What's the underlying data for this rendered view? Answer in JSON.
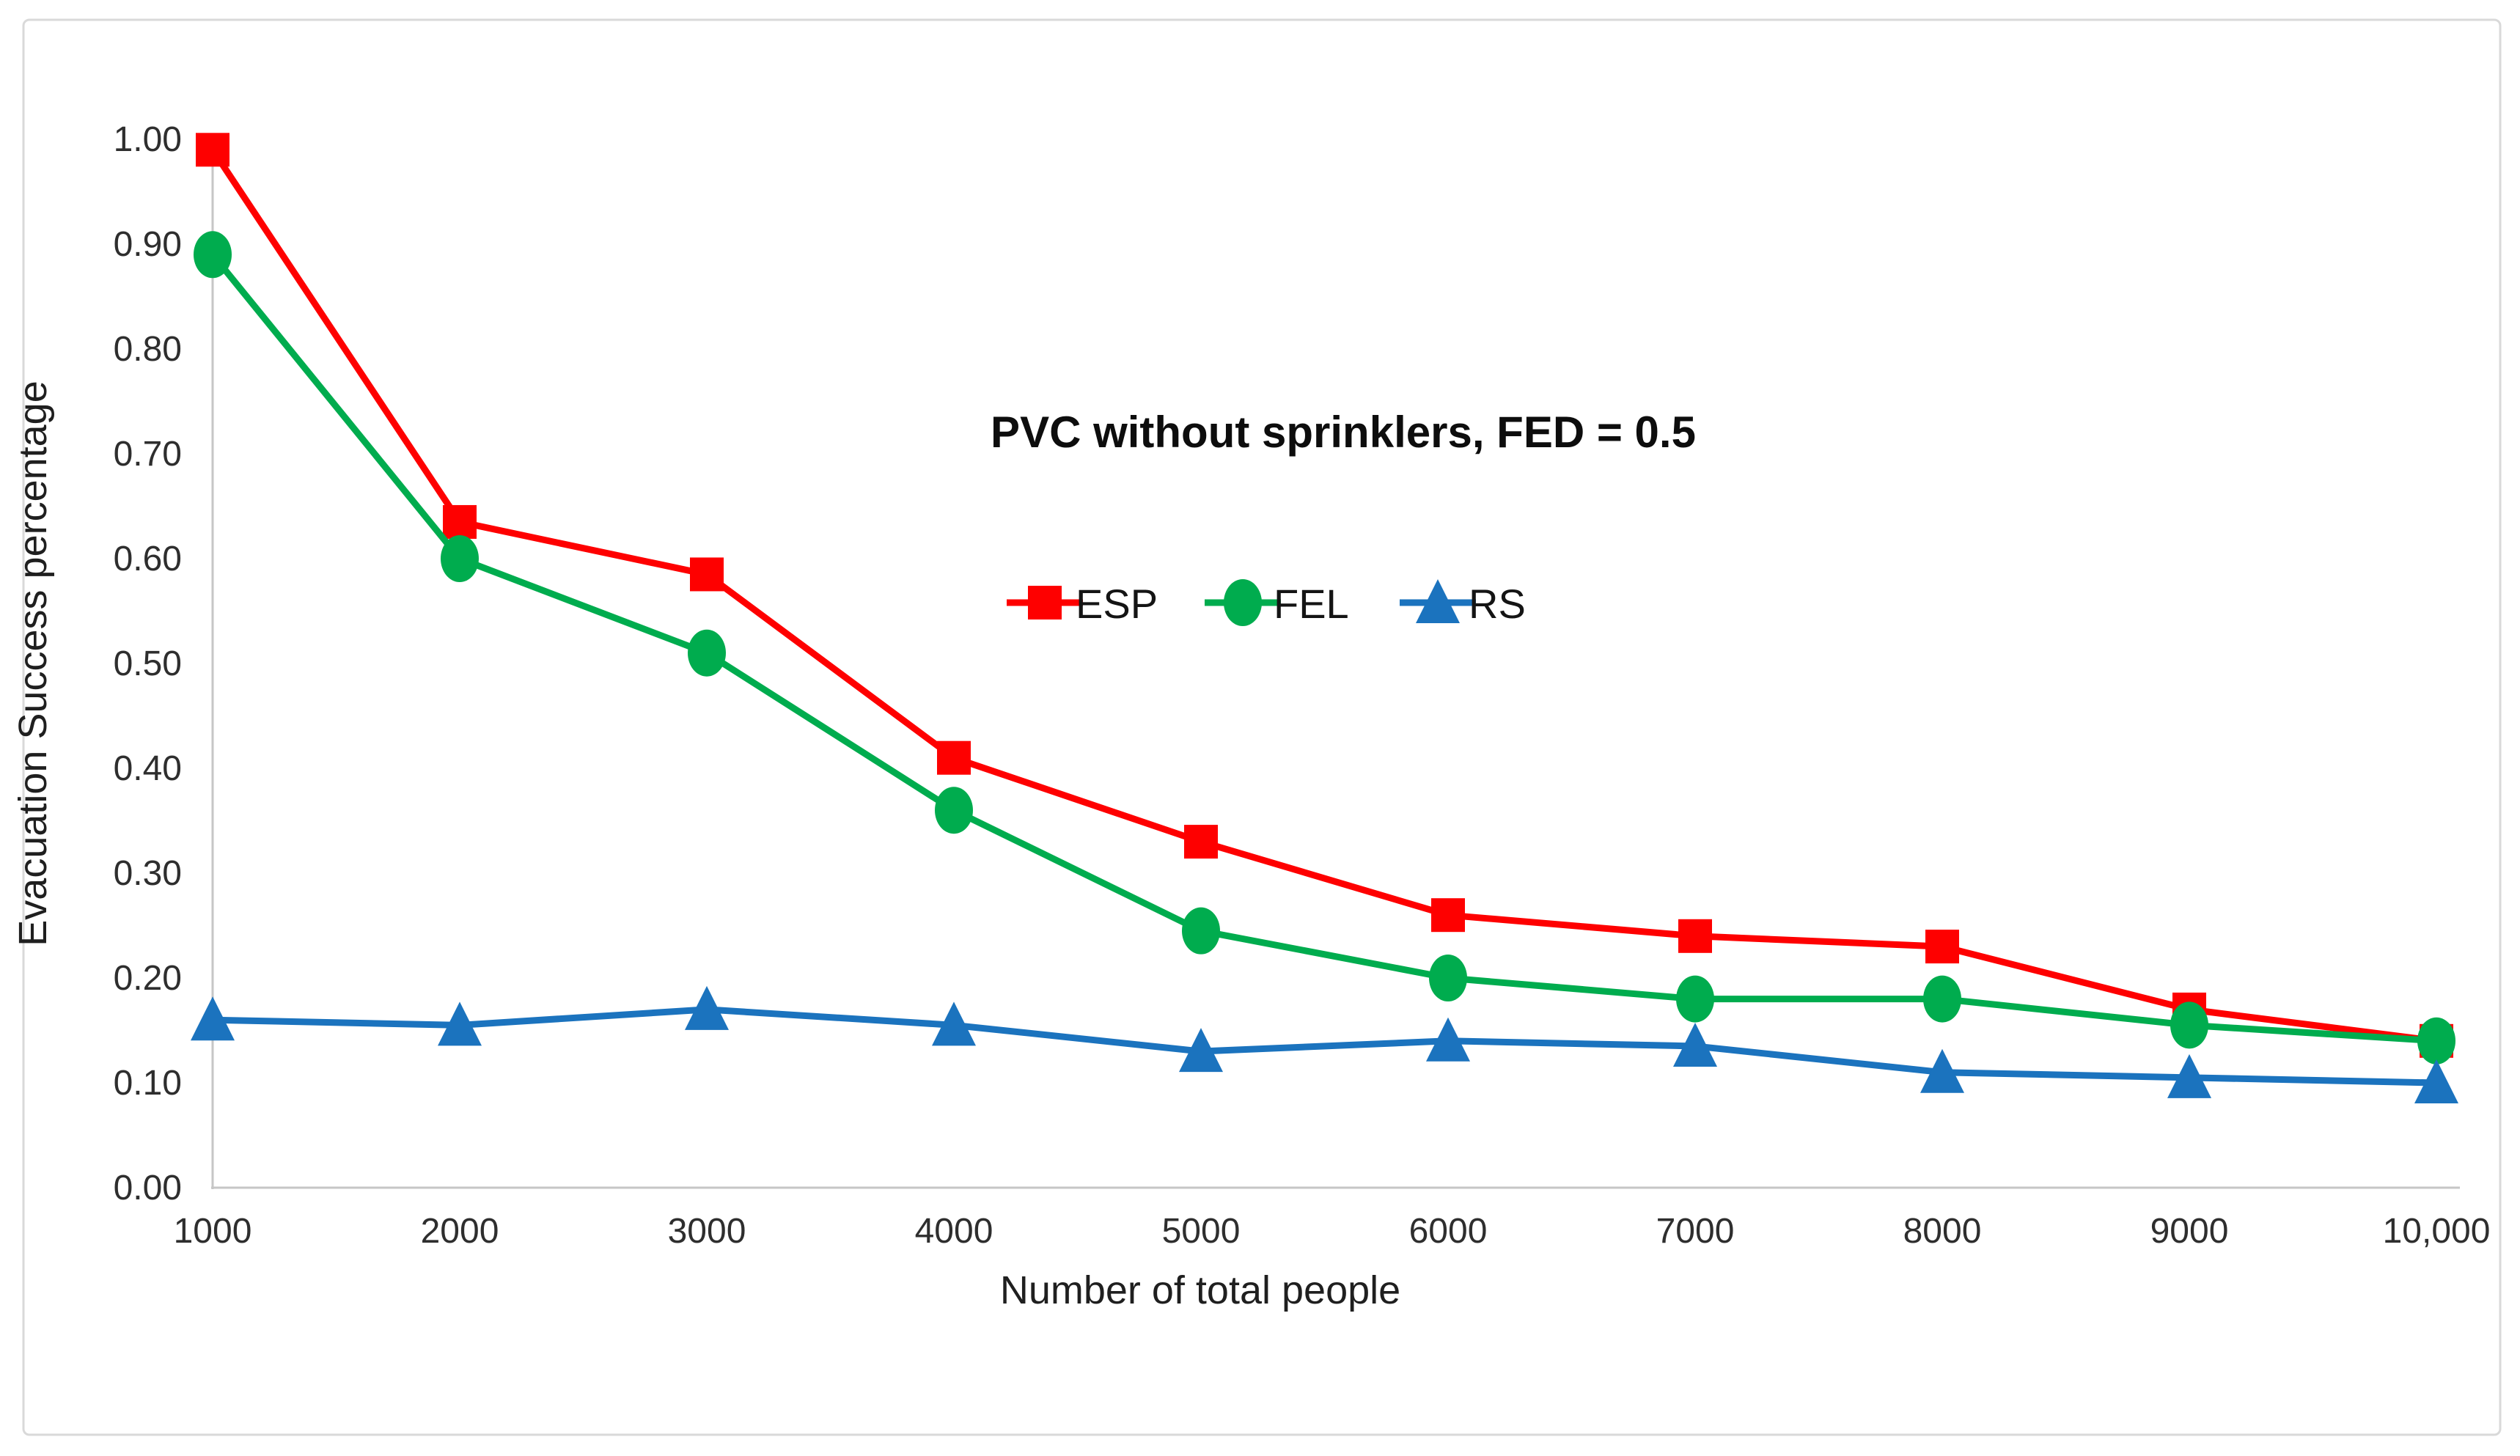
{
  "figure": {
    "background_color": "#FFFFFF",
    "border_color": "#D9D9D9",
    "axis_line_color": "#C6C6C6",
    "text_color": "#2E2E2E"
  },
  "chart_data": {
    "type": "line",
    "title": "PVC without sprinklers, FED = 0.5",
    "xlabel": "Number of total people",
    "ylabel": "Evacuation Success percentage",
    "x": [
      1000,
      2000,
      3000,
      4000,
      5000,
      6000,
      7000,
      8000,
      9000,
      10000
    ],
    "x_tick_labels": [
      "1000",
      "2000",
      "3000",
      "4000",
      "5000",
      "6000",
      "7000",
      "8000",
      "9000",
      "10,000"
    ],
    "y_ticks": [
      0.0,
      0.1,
      0.2,
      0.3,
      0.4,
      0.5,
      0.6,
      0.7,
      0.8,
      0.9,
      1.0
    ],
    "y_tick_labels": [
      "0.00",
      "0.10",
      "0.20",
      "0.30",
      "0.40",
      "0.50",
      "0.60",
      "0.70",
      "0.80",
      "0.90",
      "1.00"
    ],
    "ylim": [
      0.0,
      1.0
    ],
    "xlim": [
      1000,
      10000
    ],
    "grid": false,
    "legend_position": "inside-top-center",
    "series": [
      {
        "name": "ESP",
        "color": "#FE0000",
        "marker": "square",
        "values": [
          0.99,
          0.635,
          0.585,
          0.41,
          0.33,
          0.26,
          0.24,
          0.23,
          0.17,
          0.14
        ]
      },
      {
        "name": "FEL",
        "color": "#00AC4E",
        "marker": "circle",
        "values": [
          0.89,
          0.6,
          0.51,
          0.36,
          0.245,
          0.2,
          0.18,
          0.18,
          0.155,
          0.14
        ]
      },
      {
        "name": "RS",
        "color": "#1B73BE",
        "marker": "triangle",
        "values": [
          0.16,
          0.155,
          0.17,
          0.155,
          0.13,
          0.14,
          0.135,
          0.11,
          0.105,
          0.1
        ]
      }
    ]
  }
}
